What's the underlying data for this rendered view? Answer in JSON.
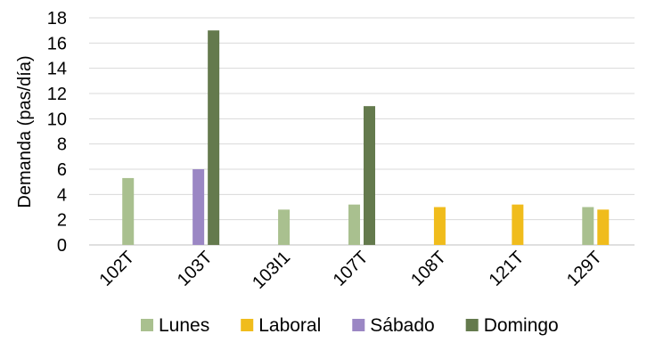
{
  "chart_data": {
    "type": "bar",
    "title": "",
    "xlabel": "",
    "ylabel": "Demanda (pas/día)",
    "ylim": [
      0,
      18
    ],
    "yticks": [
      0,
      2,
      4,
      6,
      8,
      10,
      12,
      14,
      16,
      18
    ],
    "grid": true,
    "legend_position": "bottom",
    "categories": [
      "102T",
      "103T",
      "103I1",
      "107T",
      "108T",
      "121T",
      "129T"
    ],
    "series": [
      {
        "name": "Lunes",
        "color": "#a9c08f",
        "values": [
          5.3,
          null,
          2.8,
          3.2,
          null,
          null,
          3.0
        ]
      },
      {
        "name": "Laboral",
        "color": "#f0bc1c",
        "values": [
          null,
          null,
          null,
          null,
          3.0,
          3.2,
          2.8
        ]
      },
      {
        "name": "Sábado",
        "color": "#9b87c4",
        "values": [
          null,
          6.0,
          null,
          null,
          null,
          null,
          null
        ]
      },
      {
        "name": "Domingo",
        "color": "#647a4d",
        "values": [
          null,
          17.0,
          null,
          11.0,
          null,
          null,
          null
        ]
      }
    ]
  }
}
